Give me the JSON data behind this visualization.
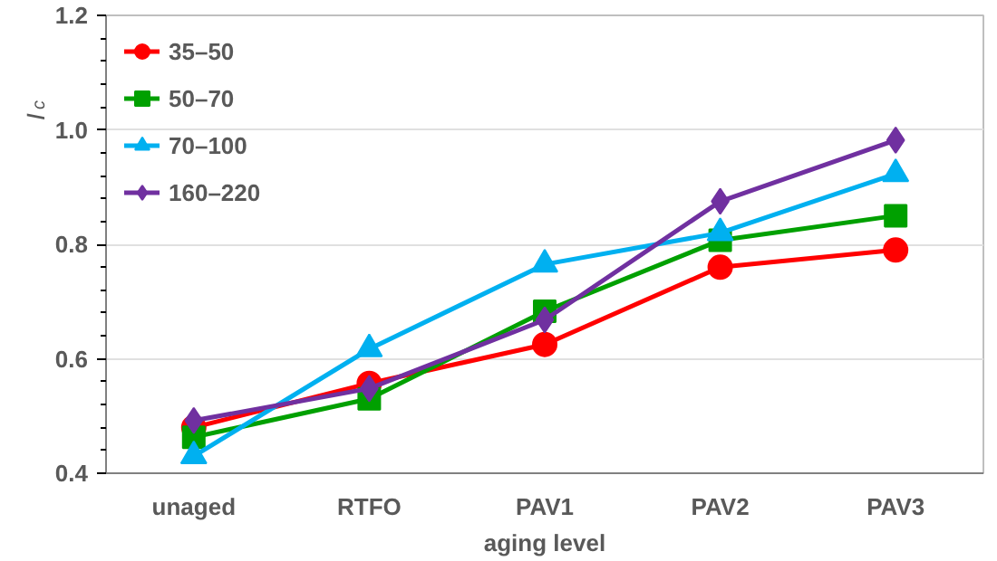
{
  "chart_data": {
    "type": "line",
    "xlabel": "aging level",
    "ylabel": "I$_{c}$",
    "categories": [
      "unaged",
      "RTFO",
      "PAV1",
      "PAV2",
      "PAV3"
    ],
    "series": [
      {
        "name": "35–50",
        "color": "#ff0000",
        "marker": "circle",
        "values": [
          0.48,
          0.557,
          0.625,
          0.76,
          0.79
        ]
      },
      {
        "name": "50–70",
        "color": "#00a000",
        "marker": "square",
        "values": [
          0.463,
          0.53,
          0.683,
          0.807,
          0.85
        ]
      },
      {
        "name": "70–100",
        "color": "#00b0f0",
        "marker": "triangle",
        "values": [
          0.43,
          0.617,
          0.765,
          0.82,
          0.923
        ]
      },
      {
        "name": "160–220",
        "color": "#7030a0",
        "marker": "diamond",
        "values": [
          0.492,
          0.548,
          0.668,
          0.875,
          0.982
        ]
      }
    ],
    "ylim": [
      0.4,
      1.2
    ],
    "yticks": [
      0.4,
      0.6,
      0.8,
      {
        "value": 1,
        "label": "1.0"
      },
      1.2
    ],
    "grid": "y",
    "legend": "top left"
  }
}
